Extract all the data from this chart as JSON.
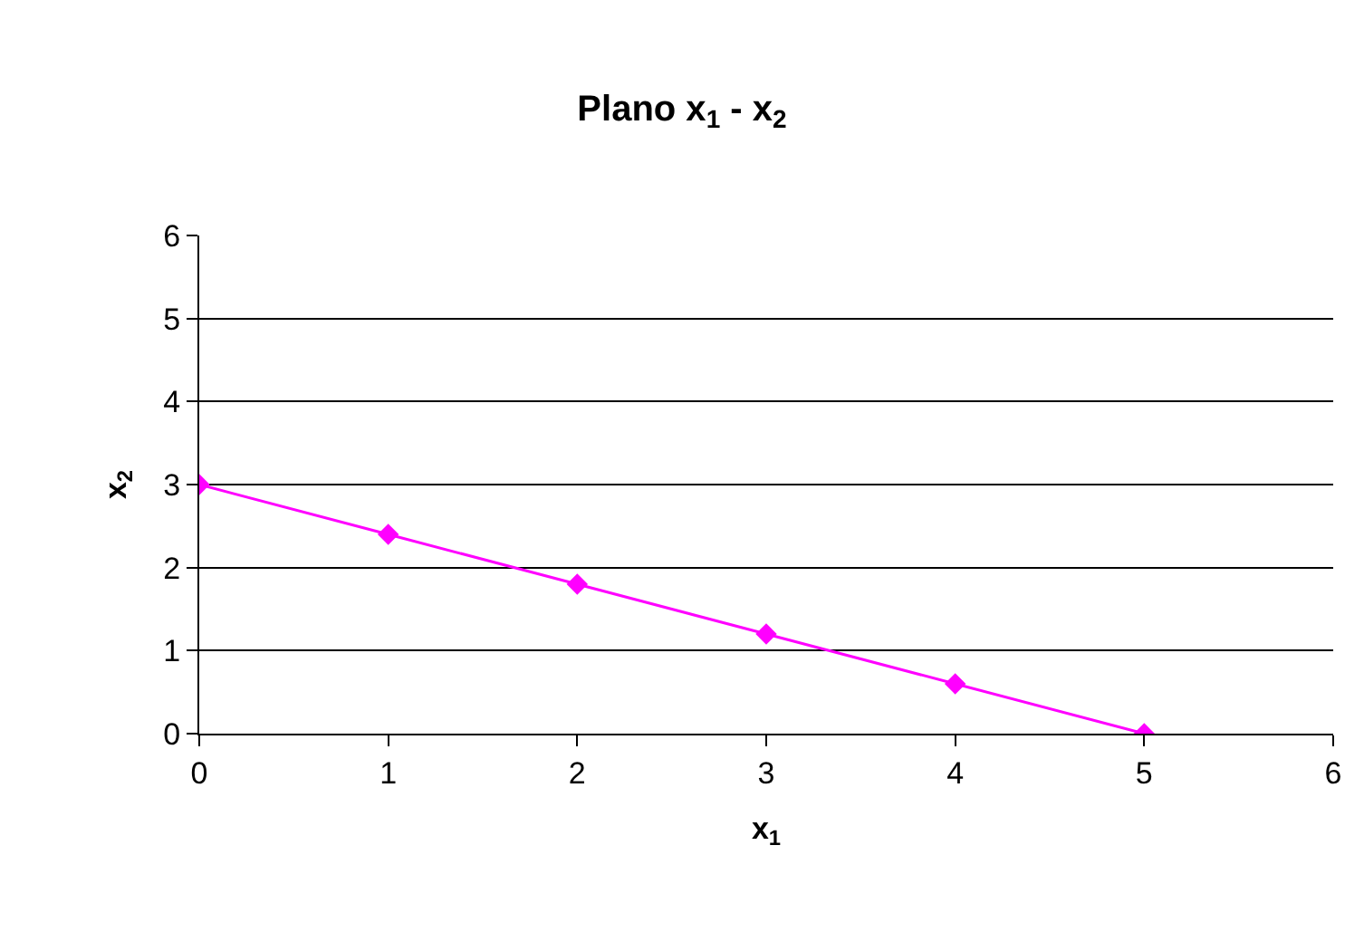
{
  "chart_data": {
    "type": "line",
    "title": "Plano x$_{1}$ - x$_{2}$",
    "xlabel": "x$_{1}$",
    "ylabel": "x$_{2}$",
    "x": [
      0,
      1,
      2,
      3,
      4,
      5
    ],
    "series": [
      {
        "color": "#ff00ff",
        "values": [
          3,
          2.4,
          1.8,
          1.2,
          0.6,
          0
        ]
      }
    ],
    "xlim": [
      0,
      6
    ],
    "xticks": [
      0,
      1,
      2,
      3,
      4,
      5,
      6
    ],
    "ylim": [
      0,
      6
    ],
    "yticks": [
      0,
      1,
      2,
      3,
      4,
      5,
      6
    ],
    "grid": "y",
    "marker": "diamond",
    "line_style": "solid"
  }
}
